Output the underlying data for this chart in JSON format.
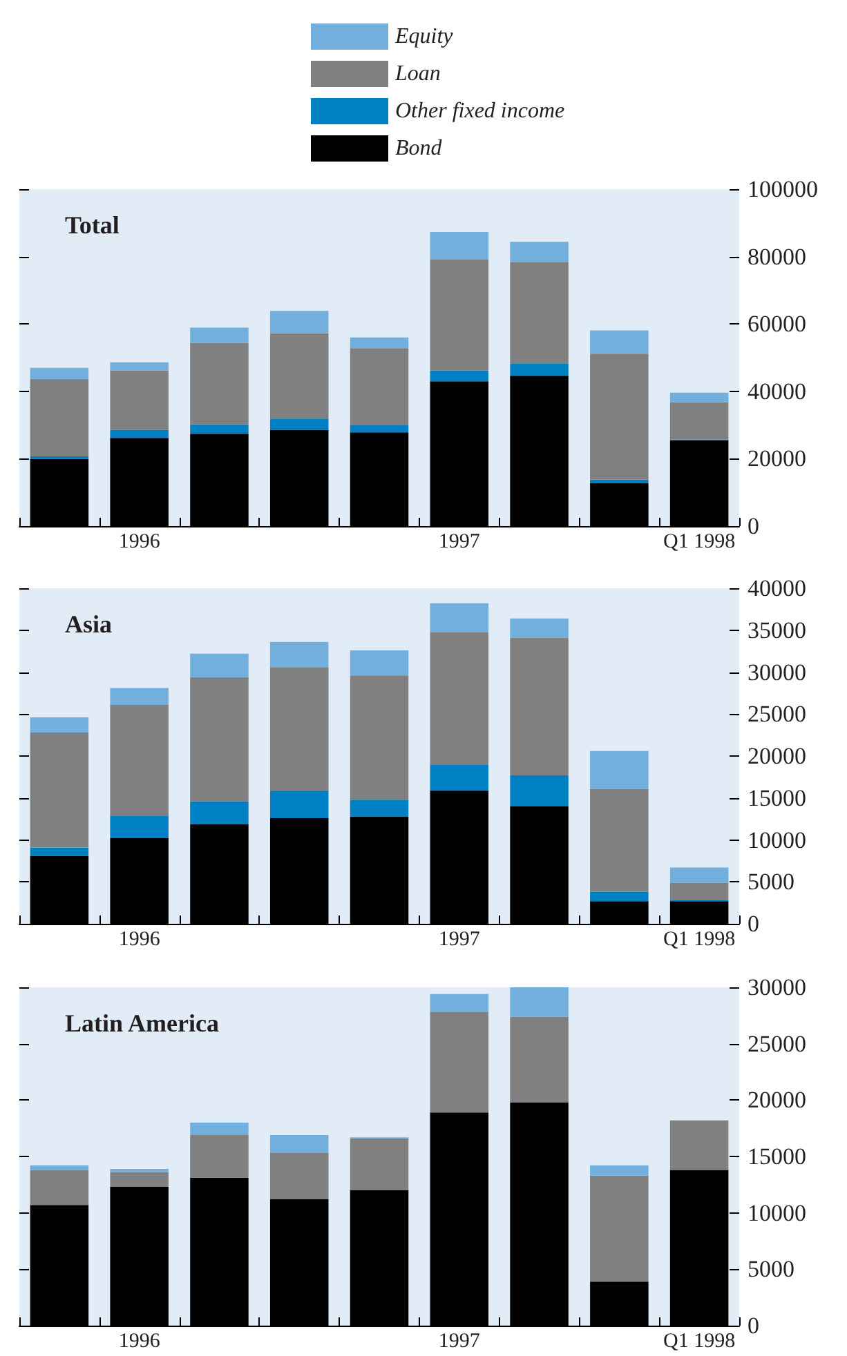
{
  "chart_data": [
    {
      "type": "bar",
      "title": "Total",
      "stacked": true,
      "legend": "top",
      "categories": [
        null,
        "1996",
        null,
        null,
        null,
        "1997",
        null,
        null,
        "Q1 1998"
      ],
      "ylim": [
        0,
        100000
      ],
      "yticks": [
        0,
        20000,
        40000,
        60000,
        80000,
        100000
      ],
      "series": [
        {
          "name": "Bond",
          "color": "#000000",
          "values": [
            20000,
            26200,
            27400,
            28600,
            27800,
            43000,
            44600,
            12700,
            25400
          ]
        },
        {
          "name": "Other fixed income",
          "color": "#0080c4",
          "values": [
            700,
            2400,
            2800,
            3300,
            2100,
            3200,
            3700,
            1100,
            300
          ]
        },
        {
          "name": "Loan",
          "color": "#808080",
          "values": [
            23000,
            17600,
            24200,
            25400,
            22900,
            32900,
            30000,
            37400,
            11100
          ]
        },
        {
          "name": "Equity",
          "color": "#73afdc",
          "values": [
            3300,
            2400,
            4500,
            6600,
            3200,
            8200,
            6100,
            6900,
            2800
          ]
        }
      ]
    },
    {
      "type": "bar",
      "title": "Asia",
      "stacked": true,
      "categories": [
        null,
        "1996",
        null,
        null,
        null,
        "1997",
        null,
        null,
        "Q1 1998"
      ],
      "ylim": [
        0,
        40000
      ],
      "yticks": [
        0,
        5000,
        10000,
        15000,
        20000,
        25000,
        30000,
        35000,
        40000
      ],
      "series": [
        {
          "color": "#000000",
          "values": [
            8100,
            10200,
            11900,
            12600,
            12800,
            15900,
            14000,
            2700,
            2700
          ]
        },
        {
          "color": "#0080c4",
          "values": [
            1000,
            2700,
            2700,
            3300,
            2000,
            3100,
            3700,
            1100,
            100
          ]
        },
        {
          "color": "#808080",
          "values": [
            13700,
            13200,
            14800,
            14700,
            14800,
            15800,
            16400,
            12300,
            2100
          ]
        },
        {
          "color": "#73afdc",
          "values": [
            1800,
            2000,
            2800,
            3000,
            3000,
            3400,
            2300,
            4500,
            1800
          ]
        }
      ]
    },
    {
      "type": "bar",
      "title": "Latin America",
      "stacked": true,
      "categories": [
        null,
        "1996",
        null,
        null,
        null,
        "1997",
        null,
        null,
        "Q1 1998"
      ],
      "ylim": [
        0,
        30000
      ],
      "yticks": [
        0,
        5000,
        10000,
        15000,
        20000,
        25000,
        30000
      ],
      "series": [
        {
          "color": "#000000",
          "values": [
            10700,
            12300,
            13100,
            11200,
            12000,
            18900,
            19800,
            3900,
            13800
          ]
        },
        {
          "color": "#0080c4",
          "values": [
            0,
            0,
            0,
            0,
            0,
            0,
            0,
            0,
            0
          ]
        },
        {
          "color": "#808080",
          "values": [
            3100,
            1300,
            3800,
            4100,
            4600,
            8900,
            7600,
            9400,
            4400
          ]
        },
        {
          "color": "#73afdc",
          "values": [
            400,
            300,
            1100,
            1600,
            100,
            1600,
            2600,
            900,
            0
          ]
        }
      ]
    }
  ]
}
